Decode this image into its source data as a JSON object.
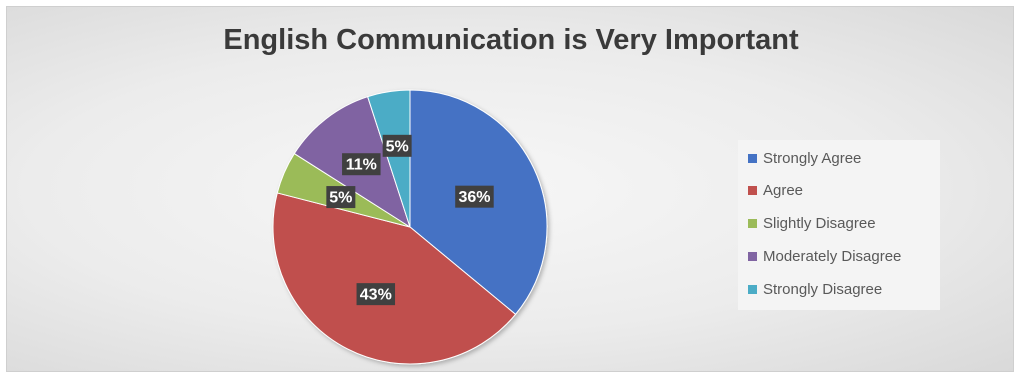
{
  "chart_data": {
    "type": "pie",
    "title": "English Communication is Very Important",
    "slices": [
      {
        "label": "Strongly Agree",
        "value": 36,
        "display": "36%",
        "color": "#4472c4"
      },
      {
        "label": "Agree",
        "value": 43,
        "display": "43%",
        "color": "#c0504d"
      },
      {
        "label": "Slightly Disagree",
        "value": 5,
        "display": "5%",
        "color": "#9bbb59"
      },
      {
        "label": "Moderately Disagree",
        "value": 11,
        "display": "11%",
        "color": "#8064a2"
      },
      {
        "label": "Strongly Disagree",
        "value": 5,
        "display": "5%",
        "color": "#4bacc6"
      }
    ],
    "legend_position": "right",
    "start_angle": "top, clockwise"
  }
}
